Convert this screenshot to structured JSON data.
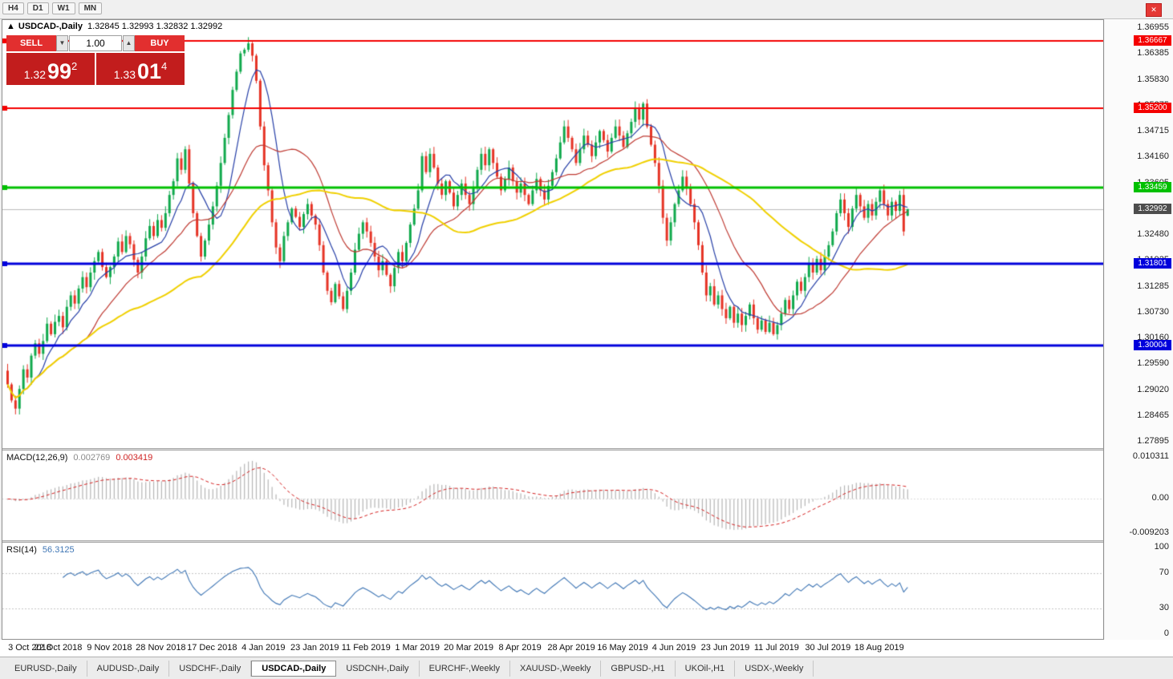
{
  "toolbar": {
    "timeframes": [
      "H4",
      "D1",
      "W1",
      "MN"
    ],
    "close_icon": "✕"
  },
  "chart_header": {
    "collapse_icon": "▲",
    "symbol": "USDCAD-,Daily",
    "ohlc": "1.32845 1.32993 1.32832 1.32992"
  },
  "trade_panel": {
    "sell_label": "SELL",
    "buy_label": "BUY",
    "volume": "1.00",
    "vol_down_icon": "▼",
    "vol_up_icon": "▲",
    "sell_price": {
      "prefix": "1.32",
      "big": "99",
      "sup": "2"
    },
    "buy_price": {
      "prefix": "1.33",
      "big": "01",
      "sup": "4"
    }
  },
  "price_scale_labels": [
    "1.36955",
    "1.36385",
    "1.35830",
    "1.35275",
    "1.34715",
    "1.34160",
    "1.33605",
    "1.33050",
    "1.32480",
    "1.31925",
    "1.31285",
    "1.30730",
    "1.30160",
    "1.29590",
    "1.29020",
    "1.28465",
    "1.27895"
  ],
  "hlines": [
    {
      "price": 1.36667,
      "label": "1.36667",
      "color": "#f40000",
      "width": 2
    },
    {
      "price": 1.352,
      "label": "1.35200",
      "color": "#f40000",
      "width": 2
    },
    {
      "price": 1.33459,
      "label": "1.33459",
      "color": "#00c000",
      "width": 3
    },
    {
      "price": 1.31801,
      "label": "1.31801",
      "color": "#0000dc",
      "width": 3
    },
    {
      "price": 1.30004,
      "label": "1.30004",
      "color": "#0000dc",
      "width": 3
    }
  ],
  "current_price": {
    "value": 1.32992,
    "label": "1.32992",
    "line_color": "#bcbcbc",
    "label_bg": "#4d4d4d"
  },
  "chart_data": {
    "type": "candlestick",
    "title": "USDCAD-,Daily",
    "y_range": [
      1.27895,
      1.36955
    ],
    "x_labels": [
      "3 Oct 2018",
      "22 Oct 2018",
      "9 Nov 2018",
      "28 Nov 2018",
      "17 Dec 2018",
      "4 Jan 2019",
      "23 Jan 2019",
      "11 Feb 2019",
      "1 Mar 2019",
      "20 Mar 2019",
      "8 Apr 2019",
      "28 Apr 2019",
      "16 May 2019",
      "4 Jun 2019",
      "23 Jun 2019",
      "11 Jul 2019",
      "30 Jul 2019",
      "18 Aug 2019"
    ],
    "x_label_interval": 13,
    "first_open": 1.2945,
    "closes": [
      1.2915,
      1.288,
      1.2862,
      1.2905,
      1.2948,
      1.293,
      1.2978,
      1.3005,
      1.2982,
      1.301,
      1.3048,
      1.3025,
      1.3052,
      1.3065,
      1.304,
      1.3085,
      1.311,
      1.3092,
      1.3125,
      1.315,
      1.3128,
      1.316,
      1.3185,
      1.3205,
      1.3172,
      1.315,
      1.3172,
      1.3195,
      1.3228,
      1.3205,
      1.324,
      1.3222,
      1.3188,
      1.316,
      1.3195,
      1.3235,
      1.3262,
      1.324,
      1.3275,
      1.3258,
      1.329,
      1.333,
      1.336,
      1.341,
      1.3385,
      1.343,
      1.3355,
      1.329,
      1.324,
      1.3195,
      1.323,
      1.3265,
      1.3305,
      1.335,
      1.34,
      1.3455,
      1.3505,
      1.356,
      1.36,
      1.364,
      1.3648,
      1.3662,
      1.3635,
      1.358,
      1.348,
      1.3395,
      1.334,
      1.327,
      1.3215,
      1.3185,
      1.324,
      1.327,
      1.33,
      1.3282,
      1.326,
      1.3288,
      1.331,
      1.3285,
      1.3265,
      1.322,
      1.316,
      1.312,
      1.3095,
      1.3135,
      1.3108,
      1.308,
      1.312,
      1.316,
      1.321,
      1.3245,
      1.327,
      1.325,
      1.3225,
      1.3195,
      1.3165,
      1.3185,
      1.3155,
      1.313,
      1.317,
      1.3205,
      1.3185,
      1.3225,
      1.3265,
      1.33,
      1.334,
      1.3415,
      1.338,
      1.342,
      1.339,
      1.3355,
      1.333,
      1.336,
      1.3335,
      1.3305,
      1.333,
      1.3355,
      1.333,
      1.331,
      1.3345,
      1.3385,
      1.342,
      1.3395,
      1.343,
      1.34,
      1.337,
      1.334,
      1.3365,
      1.339,
      1.336,
      1.3335,
      1.3355,
      1.333,
      1.331,
      1.334,
      1.3365,
      1.334,
      1.332,
      1.335,
      1.338,
      1.341,
      1.3445,
      1.348,
      1.3455,
      1.343,
      1.34,
      1.343,
      1.346,
      1.344,
      1.3415,
      1.3445,
      1.347,
      1.345,
      1.3425,
      1.3455,
      1.348,
      1.346,
      1.3435,
      1.3465,
      1.349,
      1.352,
      1.3495,
      1.353,
      1.348,
      1.344,
      1.34,
      1.335,
      1.328,
      1.323,
      1.327,
      1.331,
      1.334,
      1.337,
      1.3345,
      1.331,
      1.327,
      1.322,
      1.316,
      1.311,
      1.313,
      1.309,
      1.311,
      1.308,
      1.306,
      1.3085,
      1.305,
      1.307,
      1.3045,
      1.3065,
      1.309,
      1.306,
      1.3035,
      1.3055,
      1.303,
      1.305,
      1.3025,
      1.3045,
      1.307,
      1.31,
      1.308,
      1.311,
      1.314,
      1.312,
      1.315,
      1.318,
      1.316,
      1.319,
      1.3165,
      1.3195,
      1.322,
      1.325,
      1.329,
      1.332,
      1.329,
      1.326,
      1.33,
      1.333,
      1.3305,
      1.328,
      1.331,
      1.3285,
      1.3315,
      1.334,
      1.331,
      1.3285,
      1.3315,
      1.3295,
      1.333,
      1.325,
      1.32992
    ],
    "last_candle": {
      "o": 1.32845,
      "h": 1.32993,
      "l": 1.32832,
      "c": 1.32992
    },
    "up_color": "#10a94c",
    "down_color": "#e63325",
    "moving_averages": [
      {
        "period": 8,
        "color": "#2740a8",
        "width": 1.2
      },
      {
        "period": 21,
        "color": "#bf3a32",
        "width": 1.2
      },
      {
        "period": 50,
        "color": "#f0d000",
        "width": 2
      }
    ]
  },
  "macd_panel": {
    "name": "MACD(12,26,9)",
    "main_value": "0.002769",
    "signal_value": "0.003419",
    "fast": 12,
    "slow": 26,
    "signal": 9,
    "scale": {
      "top": "0.010311",
      "zero": "0.00",
      "bottom": "-0.009203"
    },
    "hist_color": "#b6b6b6",
    "signal_color": "#d51f1f"
  },
  "rsi_panel": {
    "name": "RSI(14)",
    "value": "56.3125",
    "period": 14,
    "levels": [
      100,
      70,
      30,
      0
    ],
    "line_color": "#3f76b5",
    "level_line_color": "#c6c6c6"
  },
  "tabs": {
    "items": [
      {
        "label": "EURUSD-,Daily",
        "active": false
      },
      {
        "label": "AUDUSD-,Daily",
        "active": false
      },
      {
        "label": "USDCHF-,Daily",
        "active": false
      },
      {
        "label": "USDCAD-,Daily",
        "active": true
      },
      {
        "label": "USDCNH-,Daily",
        "active": false
      },
      {
        "label": "EURCHF-,Weekly",
        "active": false
      },
      {
        "label": "XAUUSD-,Weekly",
        "active": false
      },
      {
        "label": "GBPUSD-,H1",
        "active": false
      },
      {
        "label": "UKOil-,H1",
        "active": false
      },
      {
        "label": "USDX-,Weekly",
        "active": false
      }
    ]
  }
}
